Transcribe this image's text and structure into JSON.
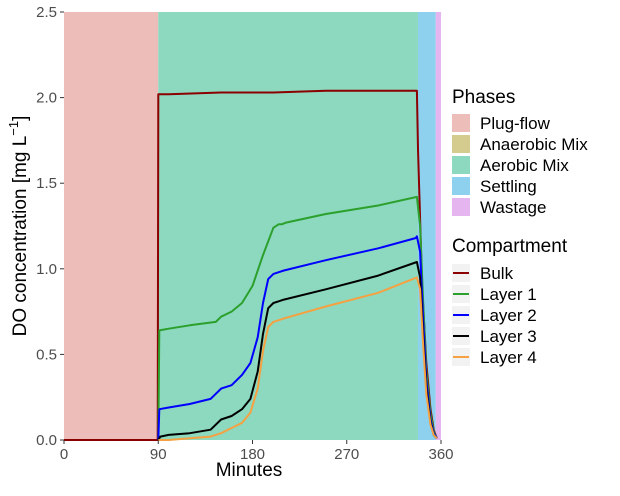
{
  "chart_data": {
    "type": "line",
    "xlabel": "Minutes",
    "ylabel_main": "DO concentration [mg L",
    "ylabel_sup": "−1",
    "ylabel_end": "]",
    "xlim": [
      0,
      360
    ],
    "ylim": [
      0,
      2.5
    ],
    "xticks": [
      0,
      90,
      180,
      270,
      360
    ],
    "xtick_labels": [
      "0",
      "90",
      "180",
      "270",
      "360"
    ],
    "yticks": [
      0,
      0.5,
      1.0,
      1.5,
      2.0,
      2.5
    ],
    "ytick_labels": [
      "0.0",
      "0.5",
      "1.0",
      "1.5",
      "2.0",
      "2.5"
    ],
    "grid": false,
    "legend_placement": "right",
    "phases": {
      "title": "Phases",
      "items": [
        {
          "name": "Plug-flow",
          "color": "#EDBDBA",
          "start": 0,
          "end": 90
        },
        {
          "name": "Anaerobic Mix",
          "color": "#D4CC8E",
          "start": 90,
          "end": 90
        },
        {
          "name": "Aerobic Mix",
          "color": "#8CD9BF",
          "start": 90,
          "end": 338
        },
        {
          "name": "Settling",
          "color": "#8ED1EE",
          "start": 338,
          "end": 355
        },
        {
          "name": "Wastage",
          "color": "#E5B5F0",
          "start": 355,
          "end": 360
        }
      ]
    },
    "compartment_title": "Compartment",
    "series": [
      {
        "name": "Bulk",
        "color": "#8B0000",
        "x": [
          0,
          89.5,
          90,
          100,
          150,
          200,
          250,
          300,
          337,
          338,
          342,
          346,
          350,
          353,
          356
        ],
        "y": [
          0,
          0,
          2.02,
          2.02,
          2.03,
          2.03,
          2.04,
          2.04,
          2.04,
          1.7,
          0.9,
          0.45,
          0.18,
          0.06,
          0.01
        ]
      },
      {
        "name": "Layer 1",
        "color": "#2CA02C",
        "x": [
          90,
          91,
          100,
          120,
          145,
          150,
          160,
          170,
          180,
          190,
          200,
          205,
          208,
          212,
          250,
          300,
          337,
          340,
          343,
          346,
          350,
          353,
          356
        ],
        "y": [
          0.0,
          0.64,
          0.65,
          0.67,
          0.69,
          0.72,
          0.75,
          0.8,
          0.9,
          1.08,
          1.24,
          1.26,
          1.26,
          1.27,
          1.32,
          1.37,
          1.42,
          1.25,
          0.8,
          0.4,
          0.15,
          0.05,
          0.01
        ]
      },
      {
        "name": "Layer 2",
        "color": "#0000FF",
        "x": [
          90,
          91,
          100,
          120,
          140,
          145,
          150,
          160,
          170,
          178,
          185,
          190,
          195,
          200,
          205,
          210,
          250,
          300,
          336,
          337,
          340,
          343,
          346,
          350,
          353,
          356
        ],
        "y": [
          0.0,
          0.18,
          0.19,
          0.21,
          0.24,
          0.27,
          0.3,
          0.32,
          0.38,
          0.45,
          0.6,
          0.8,
          0.94,
          0.97,
          0.98,
          0.99,
          1.05,
          1.12,
          1.18,
          1.19,
          1.1,
          0.7,
          0.35,
          0.12,
          0.04,
          0.01
        ]
      },
      {
        "name": "Layer 3",
        "color": "#000000",
        "x": [
          90,
          92,
          100,
          120,
          140,
          150,
          160,
          170,
          178,
          185,
          190,
          195,
          200,
          205,
          210,
          250,
          300,
          337,
          340,
          343,
          346,
          350,
          353,
          356
        ],
        "y": [
          0.0,
          0.02,
          0.03,
          0.04,
          0.06,
          0.12,
          0.14,
          0.18,
          0.24,
          0.4,
          0.62,
          0.77,
          0.8,
          0.81,
          0.82,
          0.88,
          0.96,
          1.04,
          0.95,
          0.6,
          0.3,
          0.1,
          0.03,
          0.01
        ]
      },
      {
        "name": "Layer 4",
        "color": "#F5A142",
        "x": [
          90,
          100,
          120,
          140,
          150,
          160,
          170,
          178,
          185,
          190,
          195,
          200,
          210,
          250,
          300,
          337,
          340,
          343,
          346,
          350,
          353,
          356
        ],
        "y": [
          0.0,
          0.0,
          0.01,
          0.02,
          0.04,
          0.07,
          0.1,
          0.16,
          0.3,
          0.52,
          0.66,
          0.69,
          0.71,
          0.78,
          0.86,
          0.95,
          0.88,
          0.55,
          0.27,
          0.09,
          0.03,
          0.01
        ]
      }
    ]
  }
}
